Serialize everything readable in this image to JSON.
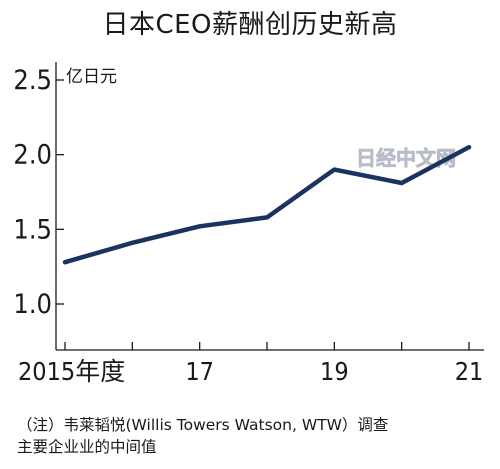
{
  "chart_data": {
    "type": "line",
    "title": "日本CEO薪酬创历史新高",
    "ylabel": "亿日元",
    "xlabel": "",
    "ylim": [
      0.8,
      2.6
    ],
    "grid": false,
    "x": [
      2015,
      2016,
      2017,
      2018,
      2019,
      2020,
      2021
    ],
    "x_tick_labels": [
      {
        "x": 2015,
        "label": "2015年度"
      },
      {
        "x": 2017,
        "label": "17"
      },
      {
        "x": 2019,
        "label": "19"
      },
      {
        "x": 2021,
        "label": "21"
      }
    ],
    "y_tick_labels": [
      {
        "y": 1.0,
        "label": "1.0"
      },
      {
        "y": 1.5,
        "label": "1.5"
      },
      {
        "y": 2.0,
        "label": "2.0"
      },
      {
        "y": 2.5,
        "label": "2.5"
      }
    ],
    "series": [
      {
        "values": [
          1.28,
          1.41,
          1.52,
          1.58,
          1.9,
          1.81,
          2.05
        ],
        "color": "#1b3360"
      }
    ]
  },
  "note": {
    "line1": "（注）韦莱韬悦(Willis Towers Watson, WTW）调查",
    "line2": "主要企业业的中间值"
  },
  "watermark": "日经中文网"
}
